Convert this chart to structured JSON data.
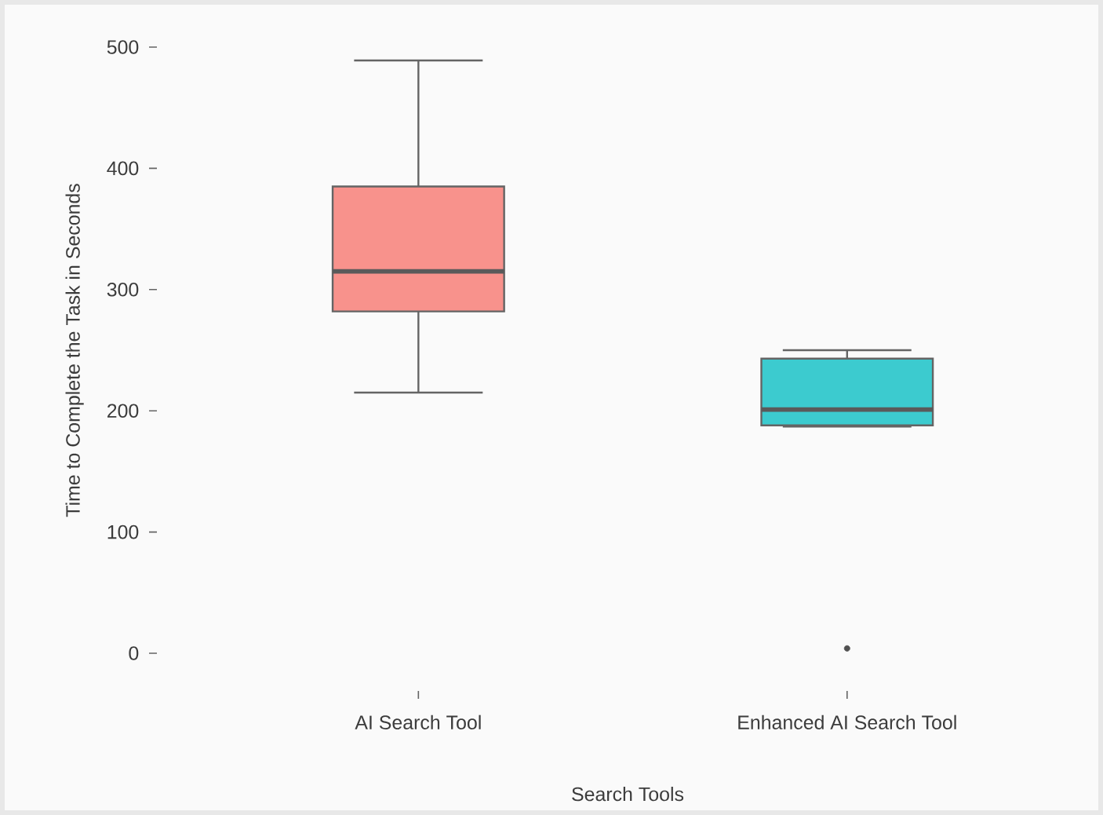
{
  "chart_data": {
    "type": "box",
    "xlabel": "Search Tools",
    "ylabel": "Time to Complete the Task in Seconds",
    "categories": [
      "AI Search Tool",
      "Enhanced AI Search Tool"
    ],
    "colors": [
      "#f8928c",
      "#3ccbcf"
    ],
    "boxes": [
      {
        "low": 215,
        "q1": 282,
        "median": 315,
        "q3": 385,
        "high": 489
      },
      {
        "low": 187,
        "q1": 188,
        "median": 201,
        "q3": 243,
        "high": 250,
        "outliers": [
          4
        ]
      }
    ],
    "ylim": [
      0,
      500
    ],
    "yticks": [
      0,
      100,
      200,
      300,
      400,
      500
    ]
  }
}
